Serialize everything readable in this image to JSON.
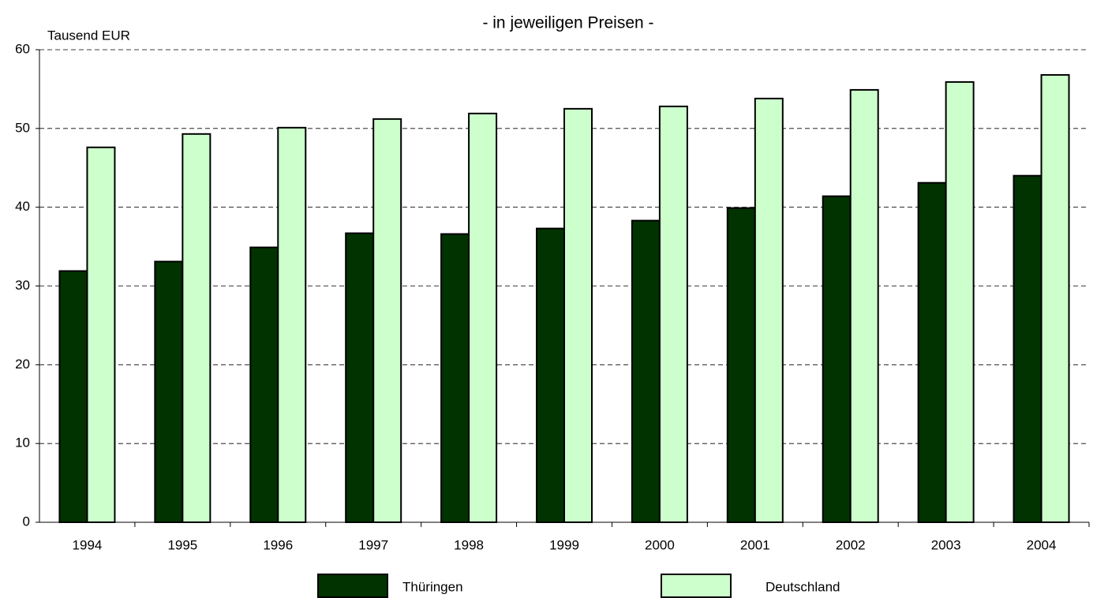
{
  "chart_data": {
    "type": "bar",
    "title": "- in jeweiligen Preisen -",
    "y_label": "Tausend EUR",
    "categories": [
      "1994",
      "1995",
      "1996",
      "1997",
      "1998",
      "1999",
      "2000",
      "2001",
      "2002",
      "2003",
      "2004"
    ],
    "series": [
      {
        "name": "Thüringen",
        "color": "#003300",
        "values": [
          31.9,
          33.1,
          34.9,
          36.7,
          36.6,
          37.3,
          38.3,
          39.9,
          41.4,
          43.1,
          44.0
        ]
      },
      {
        "name": "Deutschland",
        "color": "#ccffcc",
        "values": [
          47.6,
          49.3,
          50.1,
          51.2,
          51.9,
          52.5,
          52.8,
          53.8,
          54.9,
          55.9,
          56.8
        ]
      }
    ],
    "ylim": [
      0,
      60
    ],
    "yticks": [
      0,
      10,
      20,
      30,
      40,
      50,
      60
    ],
    "grid": true,
    "legend": "bottom"
  }
}
